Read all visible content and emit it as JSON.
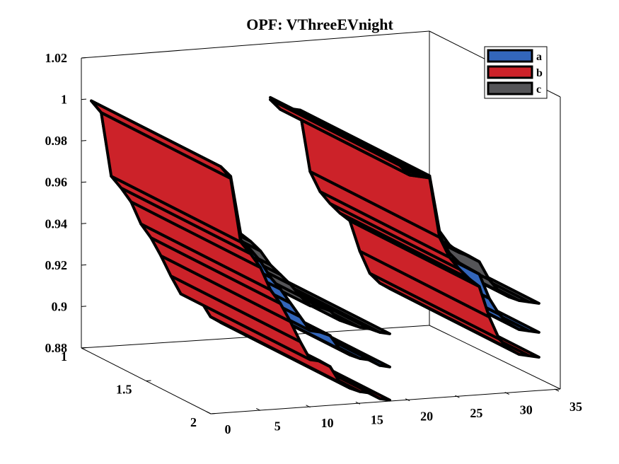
{
  "chart_data": {
    "type": "area",
    "title": "OPF: VThreeEVnight",
    "xlabel": "",
    "ylabel": "",
    "zlabel": "",
    "x_axis": {
      "range": [
        0,
        35
      ],
      "ticks": [
        0,
        5,
        10,
        15,
        20,
        25,
        30,
        35
      ]
    },
    "y_axis": {
      "range": [
        1,
        2
      ],
      "ticks": [
        1,
        1.5,
        2
      ],
      "tick_labels": [
        "1",
        "1.5",
        "2"
      ]
    },
    "z_axis": {
      "range": [
        0.88,
        1.02
      ],
      "ticks": [
        0.88,
        0.9,
        0.92,
        0.94,
        0.96,
        0.98,
        1,
        1.02
      ],
      "tick_labels": [
        "0.88",
        "0.9",
        "0.92",
        "0.94",
        "0.96",
        "0.98",
        "1",
        "1.02"
      ]
    },
    "grid": false,
    "legend_placement": "top-right",
    "series": [
      {
        "name": "a",
        "color": "#3366BB",
        "bus": [
          1,
          2,
          3,
          4,
          5,
          6,
          7,
          8,
          9,
          10,
          11,
          12,
          13,
          14,
          15,
          16,
          17,
          18,
          19,
          20,
          21,
          22,
          23,
          24,
          25,
          26,
          27,
          28,
          29,
          30,
          31,
          32,
          33
        ],
        "voltage": [
          0.999,
          0.993,
          0.963,
          0.958,
          0.952,
          0.944,
          0.938,
          0.931,
          0.924,
          0.917,
          0.916,
          0.914,
          0.907,
          0.904,
          0.902,
          0.901,
          0.898,
          0.897,
          0.994,
          0.989,
          0.988,
          0.987,
          0.959,
          0.95,
          0.945,
          0.942,
          0.939,
          0.927,
          0.919,
          0.914,
          0.911,
          0.91,
          0.909
        ]
      },
      {
        "name": "b",
        "color": "#CC2229",
        "bus": [
          1,
          2,
          3,
          4,
          5,
          6,
          7,
          8,
          9,
          10,
          11,
          12,
          13,
          14,
          15,
          16,
          17,
          18,
          19,
          20,
          21,
          22,
          23,
          24,
          25,
          26,
          27,
          28,
          29,
          30,
          31,
          32,
          33
        ],
        "voltage": [
          0.999,
          0.993,
          0.962,
          0.956,
          0.949,
          0.938,
          0.931,
          0.922,
          0.912,
          0.903,
          0.902,
          0.899,
          0.891,
          0.888,
          0.886,
          0.885,
          0.882,
          0.881,
          0.994,
          0.989,
          0.988,
          0.987,
          0.958,
          0.948,
          0.942,
          0.937,
          0.933,
          0.918,
          0.907,
          0.902,
          0.899,
          0.898,
          0.897
        ]
      },
      {
        "name": "c",
        "color": "#555558",
        "bus": [
          1,
          2,
          3,
          4,
          5,
          6,
          7,
          8,
          9,
          10,
          11,
          12,
          13,
          14,
          15,
          16,
          17,
          18,
          19,
          20,
          21,
          22,
          23,
          24,
          25,
          26,
          27,
          28,
          29,
          30,
          31,
          32,
          33
        ],
        "voltage": [
          0.999,
          0.994,
          0.966,
          0.962,
          0.957,
          0.95,
          0.945,
          0.94,
          0.934,
          0.929,
          0.928,
          0.926,
          0.921,
          0.919,
          0.917,
          0.916,
          0.914,
          0.913,
          0.995,
          0.99,
          0.989,
          0.988,
          0.961,
          0.954,
          0.95,
          0.948,
          0.945,
          0.936,
          0.93,
          0.927,
          0.925,
          0.924,
          0.923
        ]
      }
    ]
  }
}
